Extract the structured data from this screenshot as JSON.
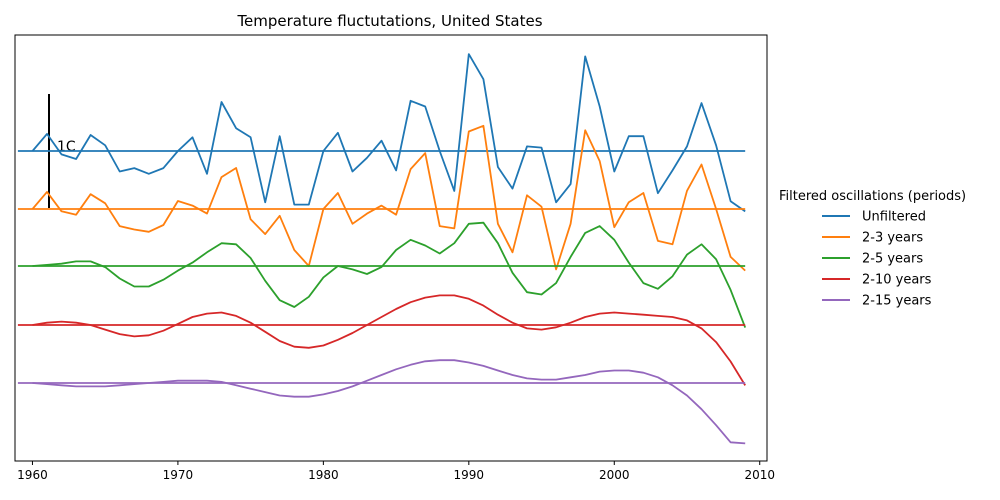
{
  "chart_data": {
    "type": "line",
    "title": "Temperature fluctutations, United States",
    "xlabel": "",
    "ylabel": "",
    "xlim": [
      1958.8,
      2010.5
    ],
    "x_ticks": [
      1960,
      1970,
      1980,
      1990,
      2000,
      2010
    ],
    "x_tick_labels": [
      "1960",
      "1970",
      "1980",
      "1990",
      "2000",
      "2010"
    ],
    "y_ticks_visible": false,
    "grid": false,
    "scale_bar": {
      "label": "1C",
      "size_c": 1
    },
    "legend": {
      "title": "Filtered oscillations (periods)",
      "position": "right-outside"
    },
    "x": [
      1960,
      1961,
      1962,
      1963,
      1964,
      1965,
      1966,
      1967,
      1968,
      1969,
      1970,
      1971,
      1972,
      1973,
      1974,
      1975,
      1976,
      1977,
      1978,
      1979,
      1980,
      1981,
      1982,
      1983,
      1984,
      1985,
      1986,
      1987,
      1988,
      1989,
      1990,
      1991,
      1992,
      1993,
      1994,
      1995,
      1996,
      1997,
      1998,
      1999,
      2000,
      2001,
      2002,
      2003,
      2004,
      2005,
      2006,
      2007,
      2008,
      2009
    ],
    "series": [
      {
        "name": "Unfiltered",
        "color": "#1f77b4",
        "baseline_year_start": 1959,
        "baseline_year_end": 2009,
        "values": [
          0.0,
          0.15,
          -0.03,
          -0.07,
          0.14,
          0.05,
          -0.18,
          -0.15,
          -0.2,
          -0.15,
          0.0,
          0.12,
          -0.2,
          0.43,
          0.2,
          0.12,
          -0.45,
          0.13,
          -0.47,
          -0.47,
          0.0,
          0.16,
          -0.18,
          -0.06,
          0.09,
          -0.17,
          0.44,
          0.39,
          0.0,
          -0.35,
          0.85,
          0.63,
          -0.14,
          -0.33,
          0.04,
          0.03,
          -0.45,
          -0.29,
          0.83,
          0.39,
          -0.18,
          0.13,
          0.13,
          -0.37,
          -0.17,
          0.04,
          0.42,
          0.05,
          -0.44,
          -0.53
        ]
      },
      {
        "name": "2-3 years",
        "color": "#ff7f0e",
        "baseline_year_start": 1959,
        "baseline_year_end": 2009,
        "values": [
          0.0,
          0.15,
          -0.02,
          -0.05,
          0.13,
          0.05,
          -0.15,
          -0.18,
          -0.2,
          -0.14,
          0.07,
          0.03,
          -0.04,
          0.28,
          0.36,
          -0.09,
          -0.22,
          -0.06,
          -0.36,
          -0.5,
          0.0,
          0.14,
          -0.13,
          -0.04,
          0.03,
          -0.05,
          0.35,
          0.49,
          -0.15,
          -0.17,
          0.68,
          0.73,
          -0.13,
          -0.38,
          0.12,
          0.02,
          -0.53,
          -0.13,
          0.69,
          0.42,
          -0.16,
          0.06,
          0.14,
          -0.28,
          -0.31,
          0.16,
          0.39,
          0.0,
          -0.42,
          -0.54
        ]
      },
      {
        "name": "2-5 years",
        "color": "#2ca02c",
        "baseline_year_start": 1959,
        "baseline_year_end": 2009,
        "values": [
          0.0,
          0.01,
          0.02,
          0.04,
          0.04,
          -0.01,
          -0.11,
          -0.18,
          -0.18,
          -0.12,
          -0.04,
          0.03,
          0.12,
          0.2,
          0.19,
          0.07,
          -0.13,
          -0.3,
          -0.36,
          -0.27,
          -0.1,
          0.0,
          -0.03,
          -0.07,
          -0.01,
          0.14,
          0.23,
          0.18,
          0.11,
          0.2,
          0.37,
          0.38,
          0.2,
          -0.06,
          -0.23,
          -0.25,
          -0.15,
          0.08,
          0.29,
          0.35,
          0.23,
          0.03,
          -0.15,
          -0.2,
          -0.09,
          0.1,
          0.19,
          0.06,
          -0.21,
          -0.54
        ]
      },
      {
        "name": "2-10 years",
        "color": "#d62728",
        "baseline_year_start": 1959,
        "baseline_year_end": 2009,
        "values": [
          0.0,
          0.02,
          0.03,
          0.02,
          0.0,
          -0.04,
          -0.08,
          -0.1,
          -0.09,
          -0.05,
          0.01,
          0.07,
          0.1,
          0.11,
          0.08,
          0.02,
          -0.06,
          -0.14,
          -0.19,
          -0.2,
          -0.18,
          -0.13,
          -0.07,
          0.0,
          0.07,
          0.14,
          0.2,
          0.24,
          0.26,
          0.26,
          0.23,
          0.17,
          0.09,
          0.02,
          -0.03,
          -0.04,
          -0.02,
          0.02,
          0.07,
          0.1,
          0.11,
          0.1,
          0.09,
          0.08,
          0.07,
          0.04,
          -0.03,
          -0.15,
          -0.32,
          -0.53
        ]
      },
      {
        "name": "2-15 years",
        "color": "#9467bd",
        "baseline_year_start": 1959,
        "baseline_year_end": 2009,
        "values": [
          0.0,
          -0.01,
          -0.02,
          -0.03,
          -0.03,
          -0.03,
          -0.02,
          -0.01,
          0.0,
          0.01,
          0.02,
          0.02,
          0.02,
          0.01,
          -0.02,
          -0.05,
          -0.08,
          -0.11,
          -0.12,
          -0.12,
          -0.1,
          -0.07,
          -0.03,
          0.02,
          0.07,
          0.12,
          0.16,
          0.19,
          0.2,
          0.2,
          0.18,
          0.15,
          0.11,
          0.07,
          0.04,
          0.03,
          0.03,
          0.05,
          0.07,
          0.1,
          0.11,
          0.11,
          0.09,
          0.05,
          -0.02,
          -0.11,
          -0.23,
          -0.37,
          -0.52,
          -0.53
        ]
      }
    ]
  }
}
